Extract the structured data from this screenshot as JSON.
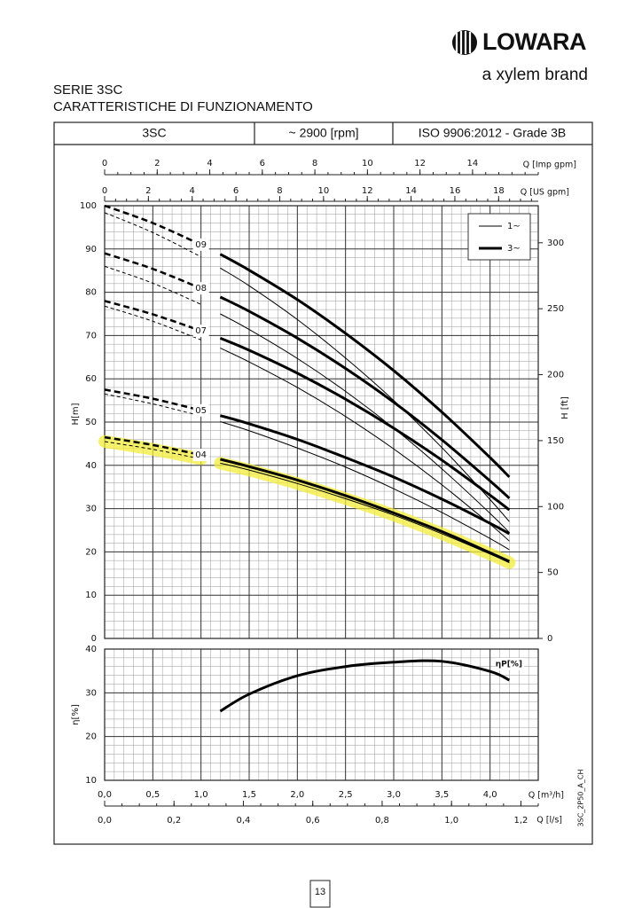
{
  "header": {
    "brand": "LOWARA",
    "tagline": "a xylem brand",
    "series": "SERIE 3SC",
    "subtitle": "CARATTERISTICHE DI FUNZIONAMENTO"
  },
  "table_header": [
    "3SC",
    "~ 2900 [rpm]",
    "ISO 9906:2012 - Grade 3B"
  ],
  "chart_data": [
    {
      "type": "line",
      "y_label": "H[m]",
      "y2_label": "H [ft]",
      "ylim": [
        0,
        100
      ],
      "yticks": [
        0,
        10,
        20,
        30,
        40,
        50,
        60,
        70,
        80,
        90,
        100
      ],
      "y2lim": [
        0,
        328.1
      ],
      "y2ticks": [
        0,
        50,
        100,
        150,
        200,
        250,
        300
      ],
      "xlim": [
        0,
        4.5
      ],
      "x2_label": "Q [Imp gpm]",
      "x2lim": [
        0,
        16.5
      ],
      "x2ticks": [
        0,
        2,
        4,
        6,
        8,
        10,
        12,
        14
      ],
      "x3_label": "Q [US gpm]",
      "x3lim": [
        0,
        19.81
      ],
      "x3ticks": [
        0,
        2,
        4,
        6,
        8,
        10,
        12,
        14,
        16,
        18
      ],
      "grid": true,
      "legend": {
        "position": "top-right",
        "entries": [
          "1~",
          "3~"
        ]
      },
      "color": "#000000",
      "x_dashed": [
        0,
        0.5,
        1.0
      ],
      "x": [
        1.2,
        1.5,
        2.0,
        2.5,
        3.0,
        3.5,
        4.0,
        4.2
      ],
      "models": [
        {
          "label": "09",
          "single_phase": {
            "dashed": [
              98.4,
              93.8,
              88.2
            ],
            "values": [
              85.6,
              81.5,
              73.7,
              64.8,
              55.0,
              44.1,
              32.1,
              27.0
            ]
          },
          "three_phase": {
            "dashed": [
              100,
              96.0,
              91.0
            ],
            "values": [
              88.8,
              85.1,
              78.3,
              70.5,
              61.9,
              52.3,
              41.8,
              37.3
            ]
          }
        },
        {
          "label": "08",
          "single_phase": {
            "dashed": [
              86,
              82.1,
              77.2
            ],
            "values": [
              75.0,
              71.4,
              64.7,
              57.1,
              48.6,
              39.2,
              28.9,
              24.5
            ]
          },
          "three_phase": {
            "dashed": [
              89,
              85.4,
              80.9
            ],
            "values": [
              78.9,
              75.6,
              69.4,
              62.4,
              54.6,
              45.9,
              36.4,
              32.4
            ]
          }
        },
        {
          "label": "07",
          "single_phase": {
            "dashed": [
              76.8,
              73.3,
              69.0
            ],
            "values": [
              67.1,
              63.9,
              58.0,
              51.3,
              43.8,
              35.5,
              26.4,
              22.5
            ]
          },
          "three_phase": {
            "dashed": [
              78,
              74.9,
              71.1
            ],
            "values": [
              69.4,
              66.6,
              61.3,
              55.3,
              48.6,
              41.2,
              33.1,
              29.7
            ]
          }
        },
        {
          "label": "05",
          "single_phase": {
            "dashed": [
              56.5,
              54.2,
              51.4
            ],
            "values": [
              50.1,
              48.0,
              44.0,
              39.6,
              34.6,
              29.1,
              23.1,
              20.5
            ]
          },
          "three_phase": {
            "dashed": [
              57.5,
              55.4,
              52.7
            ],
            "values": [
              51.5,
              49.6,
              46.0,
              41.8,
              37.3,
              32.2,
              26.6,
              24.2
            ]
          }
        },
        {
          "label": "04",
          "highlight": "#f3ec3a",
          "single_phase": {
            "dashed": [
              45.5,
              43.7,
              41.5
            ],
            "values": [
              40.5,
              38.9,
              35.8,
              32.3,
              28.5,
              24.2,
              19.5,
              17.5
            ]
          },
          "three_phase": {
            "dashed": [
              46.5,
              44.7,
              42.4
            ],
            "values": [
              41.4,
              39.7,
              36.6,
              33.0,
              29.0,
              24.7,
              19.8,
              17.8
            ]
          }
        }
      ]
    },
    {
      "type": "line",
      "y_label": "η[%]",
      "series_label": "ηP[%]",
      "ylim": [
        10,
        40
      ],
      "yticks": [
        10,
        20,
        30,
        40
      ],
      "xlim": [
        0,
        4.5
      ],
      "x_label": "Q [m³/h]",
      "xticks": [
        {
          "value": 0,
          "label": "0,0"
        },
        {
          "value": 0.5,
          "label": "0,5"
        },
        {
          "value": 1.0,
          "label": "1,0"
        },
        {
          "value": 1.5,
          "label": "1,5"
        },
        {
          "value": 2.0,
          "label": "2,0"
        },
        {
          "value": 2.5,
          "label": "2,5"
        },
        {
          "value": 3.0,
          "label": "3,0"
        },
        {
          "value": 3.5,
          "label": "3,5"
        },
        {
          "value": 4.0,
          "label": "4,0"
        }
      ],
      "x2_label": "Q [l/s]",
      "x2lim": [
        0,
        1.25
      ],
      "x2ticks": [
        {
          "value": 0,
          "label": "0,0"
        },
        {
          "value": 0.2,
          "label": "0,2"
        },
        {
          "value": 0.4,
          "label": "0,4"
        },
        {
          "value": 0.6,
          "label": "0,6"
        },
        {
          "value": 0.8,
          "label": "0,8"
        },
        {
          "value": 1.0,
          "label": "1,0"
        },
        {
          "value": 1.2,
          "label": "1,2"
        }
      ],
      "grid": true,
      "color": "#000000",
      "x": [
        1.2,
        1.5,
        2.0,
        2.5,
        3.0,
        3.5,
        4.0,
        4.2
      ],
      "values": [
        25.8,
        29.7,
        33.9,
        36.0,
        37.0,
        37.2,
        34.9,
        32.9
      ]
    }
  ],
  "side_code": "3SC_2P50_A_CH",
  "page_number": "13"
}
